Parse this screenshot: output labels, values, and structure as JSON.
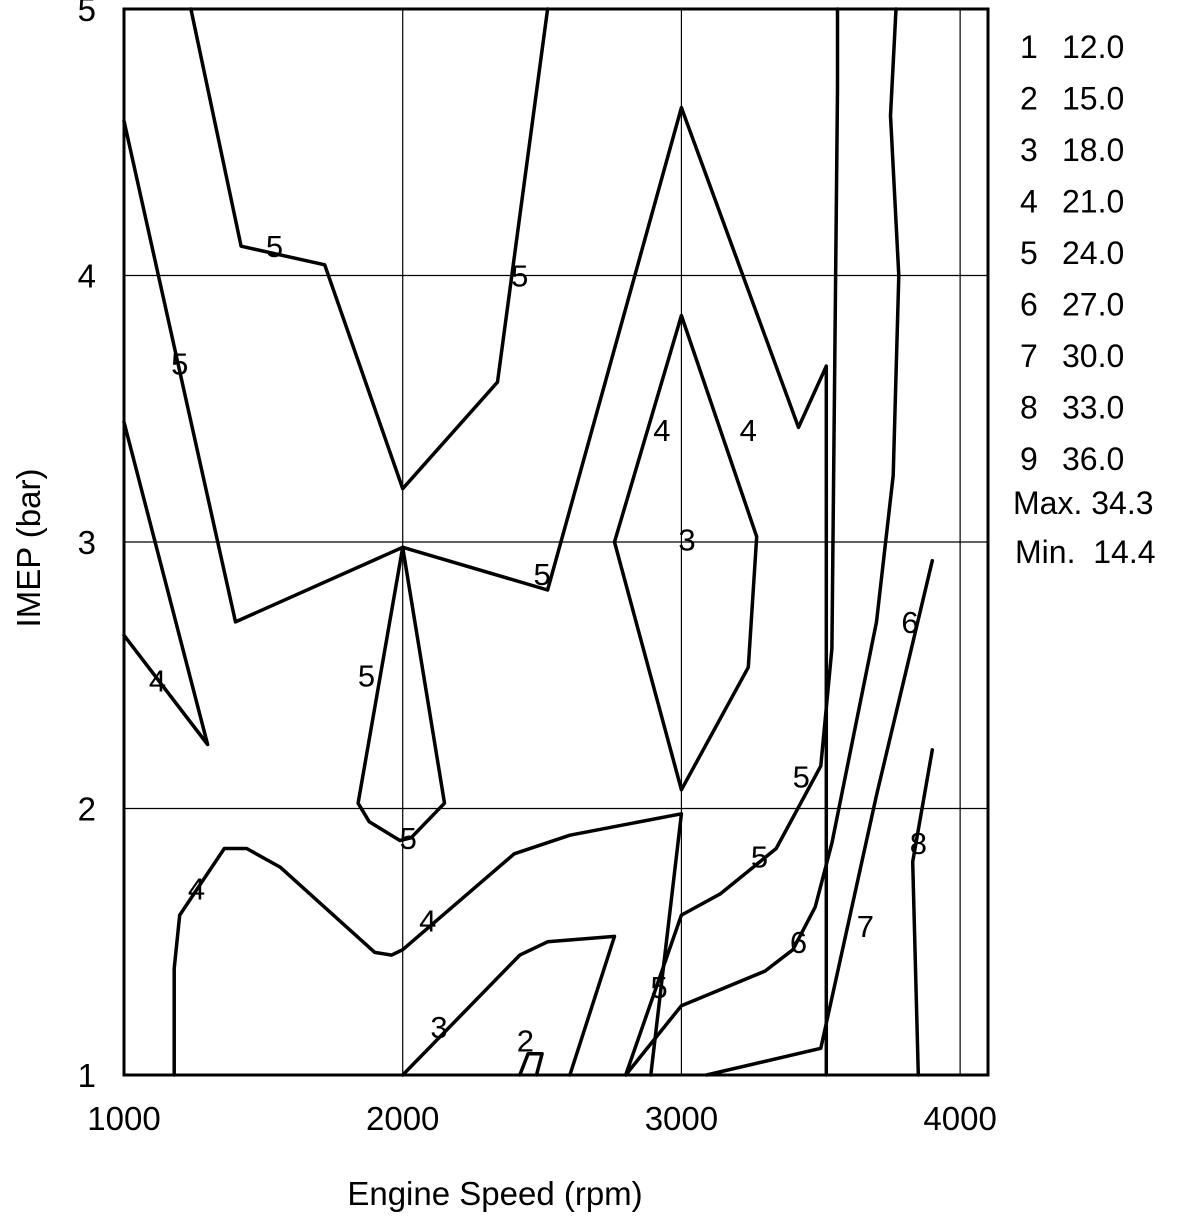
{
  "chart_data": {
    "type": "contour",
    "title": "",
    "xlabel": "Engine Speed (rpm)",
    "ylabel": "IMEP (bar)",
    "xlim": [
      1000,
      4100
    ],
    "ylim": [
      1,
      5
    ],
    "xticks": [
      1000,
      2000,
      3000,
      4000
    ],
    "yticks": [
      1,
      2,
      3,
      4,
      5
    ],
    "grid": true,
    "legend_position": "right",
    "levels": [
      {
        "id": "1",
        "value": "12.0"
      },
      {
        "id": "2",
        "value": "15.0"
      },
      {
        "id": "3",
        "value": "18.0"
      },
      {
        "id": "4",
        "value": "21.0"
      },
      {
        "id": "5",
        "value": "24.0"
      },
      {
        "id": "6",
        "value": "27.0"
      },
      {
        "id": "7",
        "value": "30.0"
      },
      {
        "id": "8",
        "value": "33.0"
      },
      {
        "id": "9",
        "value": "36.0"
      }
    ],
    "max_text": "Max. 34.3",
    "min_text": "Min.  14.4",
    "contours": [
      {
        "level": "5",
        "points": [
          [
            1240,
            5.0
          ],
          [
            1420,
            4.11
          ],
          [
            1720,
            4.04
          ],
          [
            2000,
            3.2
          ],
          [
            2340,
            3.6
          ],
          [
            2520,
            5.0
          ]
        ]
      },
      {
        "level": "5",
        "points": [
          [
            1000,
            4.58
          ],
          [
            1400,
            2.7
          ],
          [
            2000,
            2.98
          ],
          [
            2520,
            2.82
          ],
          [
            3000,
            4.63
          ],
          [
            3420,
            3.43
          ],
          [
            3520,
            3.66
          ],
          [
            3520,
            1.0
          ]
        ]
      },
      {
        "level": "4",
        "points": [
          [
            1000,
            3.45
          ],
          [
            1300,
            2.24
          ],
          [
            1000,
            2.65
          ]
        ]
      },
      {
        "level": "5",
        "points": [
          [
            2000,
            2.98
          ],
          [
            1840,
            2.02
          ],
          [
            1880,
            1.95
          ],
          [
            1990,
            1.88
          ],
          [
            2030,
            1.89
          ],
          [
            2150,
            2.02
          ],
          [
            2000,
            2.98
          ]
        ]
      },
      {
        "level": "4",
        "points": [
          [
            1180,
            1.0
          ],
          [
            1180,
            1.4
          ],
          [
            1200,
            1.6
          ],
          [
            1360,
            1.85
          ],
          [
            1440,
            1.85
          ],
          [
            1560,
            1.78
          ],
          [
            1900,
            1.46
          ],
          [
            1960,
            1.45
          ],
          [
            2000,
            1.47
          ],
          [
            2400,
            1.83
          ],
          [
            2600,
            1.9
          ],
          [
            3000,
            1.98
          ],
          [
            2890,
            1.0
          ]
        ]
      },
      {
        "level": "4",
        "points": [
          [
            3000,
            3.85
          ],
          [
            2760,
            3.0
          ],
          [
            3000,
            2.07
          ],
          [
            3240,
            2.53
          ],
          [
            3270,
            3.02
          ],
          [
            3000,
            3.85
          ]
        ]
      },
      {
        "level": "3",
        "points": [
          [
            2000,
            1.0
          ],
          [
            2420,
            1.45
          ],
          [
            2520,
            1.5
          ],
          [
            2760,
            1.52
          ],
          [
            2600,
            1.0
          ]
        ]
      },
      {
        "level": "2",
        "points": [
          [
            2420,
            1.0
          ],
          [
            2450,
            1.08
          ],
          [
            2500,
            1.08
          ],
          [
            2480,
            1.0
          ]
        ]
      },
      {
        "level": "5",
        "points": [
          [
            2800,
            1.0
          ],
          [
            3000,
            1.6
          ],
          [
            3140,
            1.68
          ],
          [
            3340,
            1.85
          ],
          [
            3500,
            2.16
          ],
          [
            3540,
            2.6
          ],
          [
            3560,
            4.7
          ],
          [
            3560,
            5.0
          ]
        ]
      },
      {
        "level": "6",
        "points": [
          [
            2800,
            1.0
          ],
          [
            3000,
            1.26
          ],
          [
            3300,
            1.39
          ],
          [
            3400,
            1.47
          ],
          [
            3480,
            1.63
          ],
          [
            3540,
            1.87
          ],
          [
            3700,
            2.7
          ],
          [
            3760,
            3.25
          ],
          [
            3780,
            4.0
          ],
          [
            3750,
            4.6
          ],
          [
            3770,
            5.0
          ]
        ]
      },
      {
        "level": "7",
        "points": [
          [
            3090,
            1.0
          ],
          [
            3500,
            1.1
          ],
          [
            3700,
            2.05
          ],
          [
            3900,
            2.93
          ]
        ]
      },
      {
        "level": "8",
        "points": [
          [
            3850,
            1.0
          ],
          [
            3830,
            1.8
          ],
          [
            3900,
            2.22
          ]
        ]
      }
    ],
    "contour_labels": [
      {
        "text": "5",
        "x": 1540,
        "y": 4.11
      },
      {
        "text": "5",
        "x": 2420,
        "y": 4.0
      },
      {
        "text": "5",
        "x": 1200,
        "y": 3.67
      },
      {
        "text": "4",
        "x": 2930,
        "y": 3.42
      },
      {
        "text": "4",
        "x": 3240,
        "y": 3.42
      },
      {
        "text": "3",
        "x": 3020,
        "y": 3.01
      },
      {
        "text": "5",
        "x": 2500,
        "y": 2.88
      },
      {
        "text": "6",
        "x": 3820,
        "y": 2.7
      },
      {
        "text": "5",
        "x": 1870,
        "y": 2.5
      },
      {
        "text": "4",
        "x": 1120,
        "y": 2.48
      },
      {
        "text": "5",
        "x": 3430,
        "y": 2.12
      },
      {
        "text": "5",
        "x": 2020,
        "y": 1.89
      },
      {
        "text": "8",
        "x": 3850,
        "y": 1.87
      },
      {
        "text": "5",
        "x": 3280,
        "y": 1.82
      },
      {
        "text": "4",
        "x": 1260,
        "y": 1.7
      },
      {
        "text": "4",
        "x": 2090,
        "y": 1.58
      },
      {
        "text": "6",
        "x": 3420,
        "y": 1.5
      },
      {
        "text": "7",
        "x": 3660,
        "y": 1.56
      },
      {
        "text": "5",
        "x": 2920,
        "y": 1.33
      },
      {
        "text": "3",
        "x": 2130,
        "y": 1.18
      },
      {
        "text": "2",
        "x": 2440,
        "y": 1.13
      }
    ]
  }
}
